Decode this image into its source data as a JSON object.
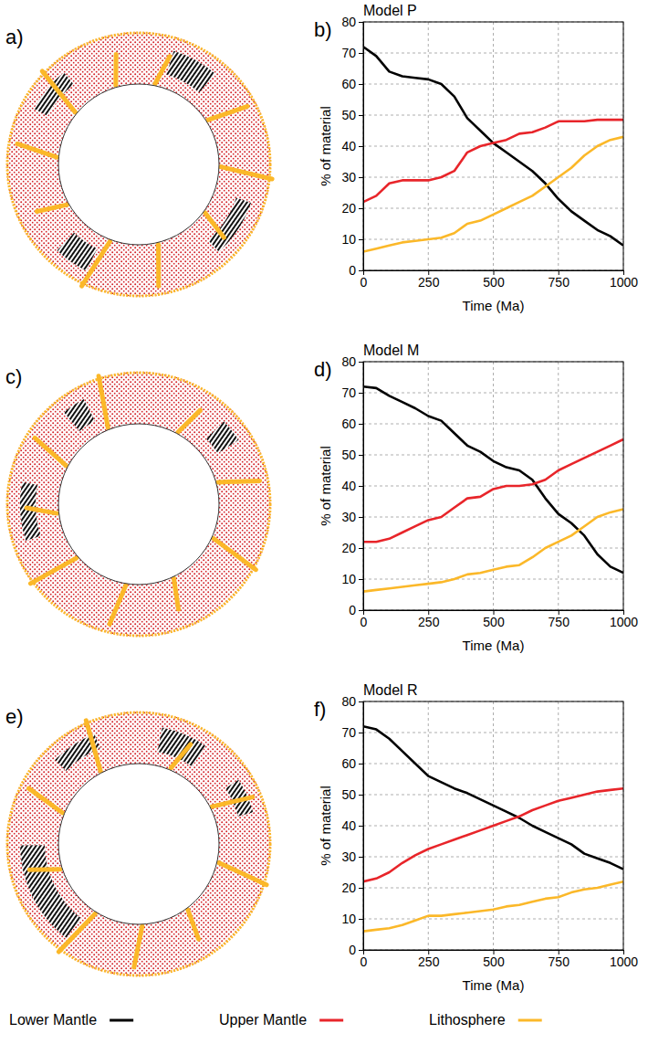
{
  "chart_data": [
    {
      "type": "line",
      "title": "Model P",
      "image_label": "a)",
      "panel_label": "b)",
      "x_label": "Time (Ma)",
      "y_label": "% of material",
      "x": [
        0,
        50,
        100,
        150,
        200,
        250,
        300,
        350,
        400,
        450,
        500,
        550,
        600,
        650,
        700,
        750,
        800,
        850,
        900,
        950,
        1000
      ],
      "xlim": [
        0,
        1000
      ],
      "xticks": [
        0,
        250,
        500,
        750,
        1000
      ],
      "ylim": [
        0,
        80
      ],
      "yticks": [
        0,
        10,
        20,
        30,
        40,
        50,
        60,
        70,
        80
      ],
      "grid": true,
      "series": [
        {
          "name": "Lower Mantle",
          "color": "#000000",
          "values": [
            72,
            69,
            64,
            62.5,
            62,
            61.5,
            60,
            56,
            49,
            45,
            41,
            38,
            35,
            32,
            28,
            23,
            19,
            16,
            13,
            11,
            8
          ]
        },
        {
          "name": "Upper Mantle",
          "color": "#e8252a",
          "values": [
            22,
            24,
            28,
            29,
            29,
            29,
            30,
            32,
            38,
            40,
            41,
            42,
            44,
            44.5,
            46,
            48,
            48,
            48,
            48.5,
            48.5,
            48.5
          ]
        },
        {
          "name": "Lithosphere",
          "color": "#fbb829",
          "values": [
            6,
            7,
            8,
            9,
            9.5,
            10,
            10.5,
            12,
            15,
            16,
            18,
            20,
            22,
            24,
            27,
            30,
            33,
            37,
            40,
            42,
            43
          ]
        }
      ]
    },
    {
      "type": "line",
      "title": "Model M",
      "image_label": "c)",
      "panel_label": "d)",
      "x_label": "Time (Ma)",
      "y_label": "% of material",
      "x": [
        0,
        50,
        100,
        150,
        200,
        250,
        300,
        350,
        400,
        450,
        500,
        550,
        600,
        650,
        700,
        750,
        800,
        850,
        900,
        950,
        1000
      ],
      "xlim": [
        0,
        1000
      ],
      "xticks": [
        0,
        250,
        500,
        750,
        1000
      ],
      "ylim": [
        0,
        80
      ],
      "yticks": [
        0,
        10,
        20,
        30,
        40,
        50,
        60,
        70,
        80
      ],
      "grid": true,
      "series": [
        {
          "name": "Lower Mantle",
          "color": "#000000",
          "values": [
            72,
            71.5,
            69,
            67,
            65,
            62.5,
            61,
            57,
            53,
            51,
            48,
            46,
            45,
            42,
            36,
            31,
            28,
            24,
            18,
            14,
            12
          ]
        },
        {
          "name": "Upper Mantle",
          "color": "#e8252a",
          "values": [
            22,
            22,
            23,
            25,
            27,
            29,
            30,
            33,
            36,
            36.5,
            39,
            40,
            40,
            40.5,
            42,
            45,
            47,
            49,
            51,
            53,
            55
          ]
        },
        {
          "name": "Lithosphere",
          "color": "#fbb829",
          "values": [
            6,
            6.5,
            7,
            7.5,
            8,
            8.5,
            9,
            10,
            11.5,
            12,
            13,
            14,
            14.5,
            17,
            20,
            22,
            24,
            27,
            30,
            31.5,
            32.5
          ]
        }
      ]
    },
    {
      "type": "line",
      "title": "Model R",
      "image_label": "e)",
      "panel_label": "f)",
      "x_label": "Time (Ma)",
      "y_label": "% of material",
      "x": [
        0,
        50,
        100,
        150,
        200,
        250,
        300,
        350,
        400,
        450,
        500,
        550,
        600,
        650,
        700,
        750,
        800,
        850,
        900,
        950,
        1000
      ],
      "xlim": [
        0,
        1000
      ],
      "xticks": [
        0,
        250,
        500,
        750,
        1000
      ],
      "ylim": [
        0,
        80
      ],
      "yticks": [
        0,
        10,
        20,
        30,
        40,
        50,
        60,
        70,
        80
      ],
      "grid": true,
      "legend": "bottom",
      "series": [
        {
          "name": "Lower Mantle",
          "color": "#000000",
          "values": [
            72,
            71,
            68,
            64,
            60,
            56,
            54,
            52,
            50.5,
            48.5,
            46.5,
            44.5,
            42.5,
            40,
            38,
            36,
            34,
            31,
            29.5,
            28,
            26
          ]
        },
        {
          "name": "Upper Mantle",
          "color": "#e8252a",
          "values": [
            22,
            23,
            25,
            28,
            30.5,
            32.5,
            34,
            35.5,
            37,
            38.5,
            40,
            41.5,
            43,
            45,
            46.5,
            48,
            49,
            50,
            51,
            51.5,
            52
          ]
        },
        {
          "name": "Lithosphere",
          "color": "#fbb829",
          "values": [
            6,
            6.5,
            7,
            8,
            9.5,
            11,
            11,
            11.5,
            12,
            12.5,
            13,
            14,
            14.5,
            15.5,
            16.5,
            17,
            18.5,
            19.5,
            20,
            21,
            22
          ]
        }
      ]
    }
  ]
}
